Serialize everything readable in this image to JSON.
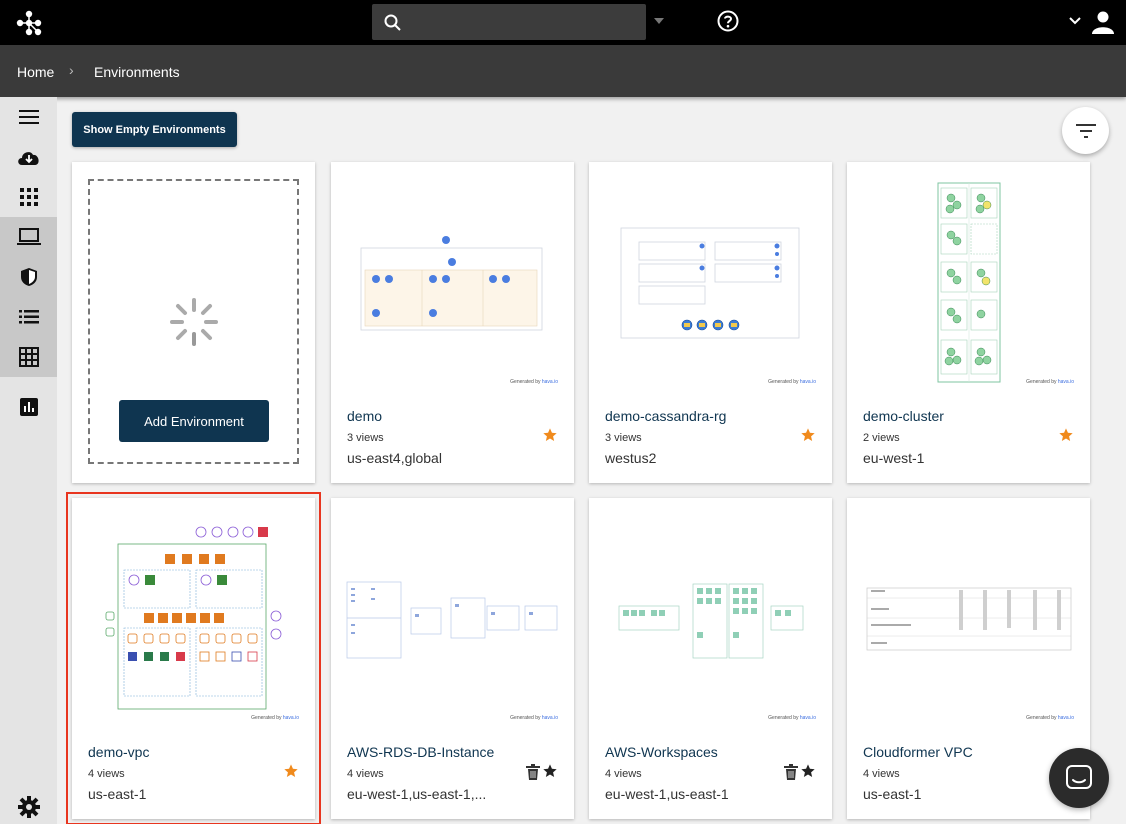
{
  "breadcrumb": {
    "home": "Home",
    "separator": "›",
    "current": "Environments"
  },
  "search": {
    "value": ""
  },
  "toolbar": {
    "show_empty_label": "Show Empty Environments"
  },
  "add_card": {
    "button_label": "Add Environment"
  },
  "cards": [
    {
      "name": "demo",
      "views": "3 views",
      "region": "us-east4,global",
      "starred": true
    },
    {
      "name": "demo-cassandra-rg",
      "views": "3 views",
      "region": "westus2",
      "starred": true
    },
    {
      "name": "demo-cluster",
      "views": "2 views",
      "region": "eu-west-1",
      "starred": true
    },
    {
      "name": "demo-vpc",
      "views": "4 views",
      "region": "us-east-1",
      "starred": true
    },
    {
      "name": "AWS-RDS-DB-Instance",
      "views": "4 views",
      "region": "eu-west-1,us-east-1,...",
      "starred": false
    },
    {
      "name": "AWS-Workspaces",
      "views": "4 views",
      "region": "eu-west-1,us-east-1",
      "starred": false
    },
    {
      "name": "Cloudformer VPC",
      "views": "4 views",
      "region": "us-east-1",
      "starred": false
    }
  ],
  "thumbnail": {
    "generated_by": "Generated by",
    "brand": "hava.io"
  },
  "colors": {
    "navy": "#0f3550",
    "star": "#f08a1c",
    "selected": "#e8351f"
  }
}
